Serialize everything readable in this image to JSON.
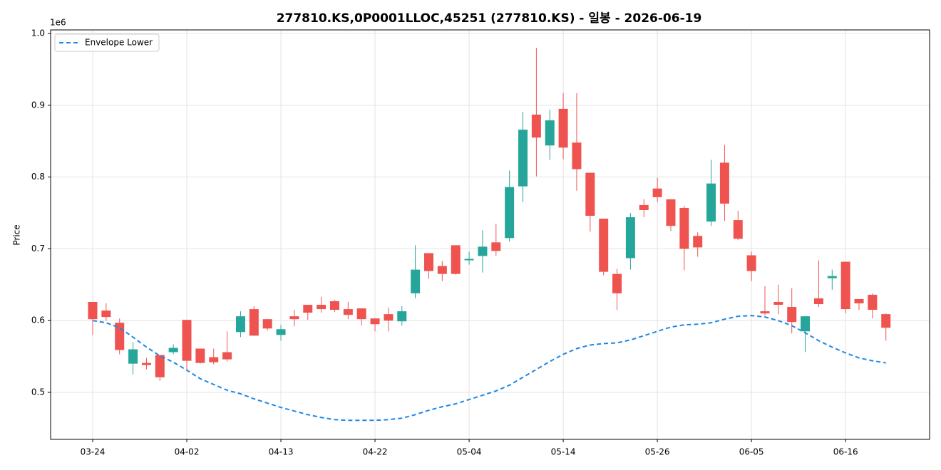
{
  "chart_data": {
    "type": "candlestick",
    "title": "277810.KS,0P0001LLOC,45251 (277810.KS) - 일봉 - 2026-06-19",
    "y_label": "Price",
    "y_offset_label": "1e6",
    "categories": [
      "03-24",
      null,
      null,
      null,
      null,
      null,
      null,
      "04-02",
      null,
      null,
      null,
      null,
      null,
      null,
      "04-13",
      null,
      null,
      null,
      null,
      null,
      null,
      "04-22",
      null,
      null,
      null,
      null,
      null,
      null,
      "05-04",
      null,
      null,
      null,
      null,
      null,
      null,
      "05-14",
      null,
      null,
      null,
      null,
      null,
      null,
      "05-26",
      null,
      null,
      null,
      null,
      null,
      null,
      "06-05",
      null,
      null,
      null,
      null,
      null,
      null,
      "06-16",
      null,
      null,
      null
    ],
    "open": [
      0.626,
      0.614,
      0.597,
      0.54,
      0.541,
      0.552,
      0.556,
      0.601,
      0.561,
      0.549,
      0.556,
      0.584,
      0.616,
      0.602,
      0.58,
      0.606,
      0.622,
      0.622,
      0.627,
      0.616,
      0.617,
      0.603,
      0.609,
      0.599,
      0.638,
      0.694,
      0.676,
      0.705,
      0.684,
      0.69,
      0.709,
      0.715,
      0.787,
      0.887,
      0.844,
      0.895,
      0.848,
      0.806,
      0.742,
      0.665,
      0.687,
      0.761,
      0.784,
      0.769,
      0.757,
      0.718,
      0.738,
      0.82,
      0.74,
      0.691,
      0.613,
      0.626,
      0.619,
      0.585,
      0.631,
      0.659,
      0.682,
      0.63,
      0.636,
      0.609
    ],
    "high": [
      0.626,
      0.624,
      0.603,
      0.57,
      0.548,
      0.552,
      0.567,
      0.601,
      0.561,
      0.561,
      0.585,
      0.613,
      0.62,
      0.602,
      0.594,
      0.615,
      0.622,
      0.633,
      0.629,
      0.626,
      0.617,
      0.603,
      0.618,
      0.62,
      0.705,
      0.694,
      0.683,
      0.705,
      0.696,
      0.726,
      0.735,
      0.809,
      0.891,
      0.98,
      0.894,
      0.917,
      0.917,
      0.806,
      0.742,
      0.672,
      0.75,
      0.769,
      0.799,
      0.769,
      0.76,
      0.723,
      0.824,
      0.845,
      0.753,
      0.696,
      0.648,
      0.65,
      0.645,
      0.606,
      0.684,
      0.671,
      0.682,
      0.63,
      0.638,
      0.61
    ],
    "low": [
      0.58,
      0.6,
      0.553,
      0.525,
      0.532,
      0.516,
      0.553,
      0.531,
      0.54,
      0.539,
      0.543,
      0.577,
      0.579,
      0.586,
      0.572,
      0.592,
      0.601,
      0.611,
      0.612,
      0.602,
      0.593,
      0.585,
      0.585,
      0.593,
      0.631,
      0.658,
      0.655,
      0.664,
      0.678,
      0.667,
      0.69,
      0.71,
      0.765,
      0.801,
      0.824,
      0.825,
      0.781,
      0.724,
      0.663,
      0.615,
      0.671,
      0.744,
      0.765,
      0.725,
      0.67,
      0.689,
      0.732,
      0.739,
      0.712,
      0.655,
      0.607,
      0.609,
      0.582,
      0.556,
      0.619,
      0.643,
      0.61,
      0.615,
      0.603,
      0.572
    ],
    "close": [
      0.602,
      0.605,
      0.559,
      0.56,
      0.538,
      0.521,
      0.562,
      0.544,
      0.541,
      0.542,
      0.546,
      0.606,
      0.579,
      0.589,
      0.588,
      0.602,
      0.611,
      0.616,
      0.615,
      0.608,
      0.602,
      0.595,
      0.6,
      0.613,
      0.671,
      0.669,
      0.665,
      0.665,
      0.686,
      0.703,
      0.697,
      0.786,
      0.866,
      0.855,
      0.879,
      0.841,
      0.811,
      0.746,
      0.668,
      0.638,
      0.744,
      0.754,
      0.772,
      0.732,
      0.7,
      0.702,
      0.791,
      0.763,
      0.714,
      0.669,
      0.61,
      0.622,
      0.598,
      0.606,
      0.623,
      0.662,
      0.616,
      0.624,
      0.615,
      0.59
    ],
    "up_color": "#26a69a",
    "down_color": "#ef5350",
    "series": [
      {
        "name": "Envelope Lower",
        "color": "#1e88e5",
        "dashed": true,
        "values": [
          0.6,
          0.597,
          0.59,
          0.577,
          0.563,
          0.551,
          0.542,
          0.531,
          0.519,
          0.511,
          0.503,
          0.498,
          0.491,
          0.485,
          0.479,
          0.474,
          0.469,
          0.465,
          0.462,
          0.461,
          0.461,
          0.461,
          0.462,
          0.464,
          0.469,
          0.475,
          0.48,
          0.484,
          0.49,
          0.496,
          0.502,
          0.51,
          0.521,
          0.532,
          0.543,
          0.553,
          0.561,
          0.566,
          0.568,
          0.569,
          0.573,
          0.579,
          0.585,
          0.591,
          0.594,
          0.595,
          0.597,
          0.602,
          0.606,
          0.607,
          0.605,
          0.6,
          0.593,
          0.583,
          0.572,
          0.563,
          0.555,
          0.548,
          0.544,
          0.541
        ]
      }
    ],
    "ylim": [
      0.4345,
      1.005
    ],
    "yticks": [
      0.5,
      0.6,
      0.7,
      0.8,
      0.9,
      {
        "value": 1.0,
        "label": "1.0"
      }
    ],
    "grid": true,
    "legend": "upper left"
  }
}
